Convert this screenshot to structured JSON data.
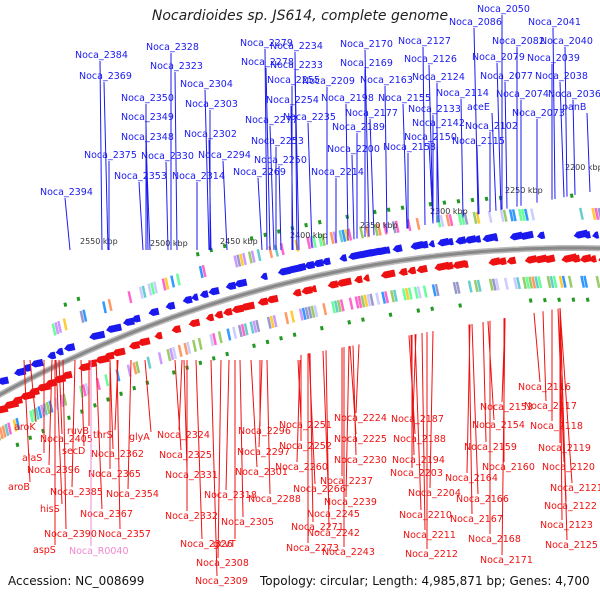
{
  "title": "Nocardioides sp. JS614, complete genome",
  "footer": {
    "accession": "Accession: NC_008699",
    "summary": "Topology: circular; Length: 4,985,871 bp; Genes: 4,700"
  },
  "colors": {
    "forward_strand": "#1a1aee",
    "reverse_strand": "#ee1111",
    "rna_label": "#ee88cc",
    "backbone": "#888888",
    "tick_green": "#229922"
  },
  "kbp_ticks": [
    "2200 kbp",
    "2250 kbp",
    "2300 kbp",
    "2350 kbp",
    "2400 kbp",
    "2450 kbp",
    "2500 kbp",
    "2550 kbp"
  ],
  "top_labels": [
    "Noca_2050",
    "Noca_2041",
    "Noca_2086",
    "Noca_2082",
    "Noca_2040",
    "Noca_2079",
    "Noca_2039",
    "Noca_2077",
    "Noca_2038",
    "Noca_2074",
    "Noca_2036",
    "panB",
    "Noca_2073",
    "Noca_2127",
    "Noca_2126",
    "Noca_2124",
    "Noca_2114",
    "aceE",
    "Noca_2102",
    "Noca_2115",
    "Noca_2170",
    "Noca_2169",
    "Noca_2163",
    "Noca_2155",
    "Noca_2133",
    "Noca_2142",
    "Noca_2150",
    "Noca_2158",
    "Noca_2234",
    "Noca_2233",
    "Noca_2209",
    "Noca_2198",
    "Noca_2177",
    "Noca_2189",
    "Noca_2200",
    "Noca_2235",
    "Noca_2214",
    "Noca_2279",
    "Noca_2278",
    "Noca_2255",
    "Noca_2254",
    "Noca_2277",
    "Noca_2253",
    "Noca_2250",
    "Noca_2269",
    "Noca_2328",
    "Noca_2323",
    "Noca_2304",
    "Noca_2303",
    "Noca_2302",
    "Noca_2294",
    "Noca_2314",
    "Noca_2384",
    "Noca_2369",
    "Noca_2350",
    "Noca_2349",
    "Noca_2348",
    "Noca_2375",
    "Noca_2330",
    "Noca_2353",
    "Noca_2394"
  ],
  "bottom_labels": [
    "aroK",
    "Noca_2405",
    "alaS",
    "Noca_2396",
    "aroB",
    "secD",
    "ruvB",
    "Noca_2385",
    "hisS",
    "Noca_2390",
    "aspS",
    "thrS",
    "glyA",
    "Noca_2362",
    "Noca_2365",
    "Noca_2354",
    "Noca_2367",
    "Noca_2357",
    "Noca_R0040",
    "Noca_2324",
    "Noca_2325",
    "Noca_2331",
    "Noca_2332",
    "Noca_2318",
    "Noca_2326",
    "Noca_2305",
    "Noca_2296",
    "Noca_2297",
    "Noca_2301",
    "Noca_2288",
    "gcvT",
    "Noca_2308",
    "Noca_2309",
    "Noca_2251",
    "Noca_2252",
    "Noca_2260",
    "Noca_2266",
    "Noca_2271",
    "Noca_2273",
    "Noca_2224",
    "Noca_2225",
    "Noca_2230",
    "Noca_2237",
    "Noca_2239",
    "Noca_2245",
    "Noca_2242",
    "Noca_2243",
    "Noca_2187",
    "Noca_2188",
    "Noca_2194",
    "Noca_2203",
    "Noca_2204",
    "Noca_2210",
    "Noca_2211",
    "Noca_2212",
    "Noca_2153",
    "Noca_2154",
    "Noca_2159",
    "Noca_2160",
    "Noca_2164",
    "Noca_2166",
    "Noca_2167",
    "Noca_2168",
    "Noca_2171",
    "Noca_2116",
    "Noca_2117",
    "Noca_2118",
    "Noca_2119",
    "Noca_2120",
    "Noca_2121",
    "Noca_2122",
    "Noca_2123",
    "Noca_2125"
  ]
}
